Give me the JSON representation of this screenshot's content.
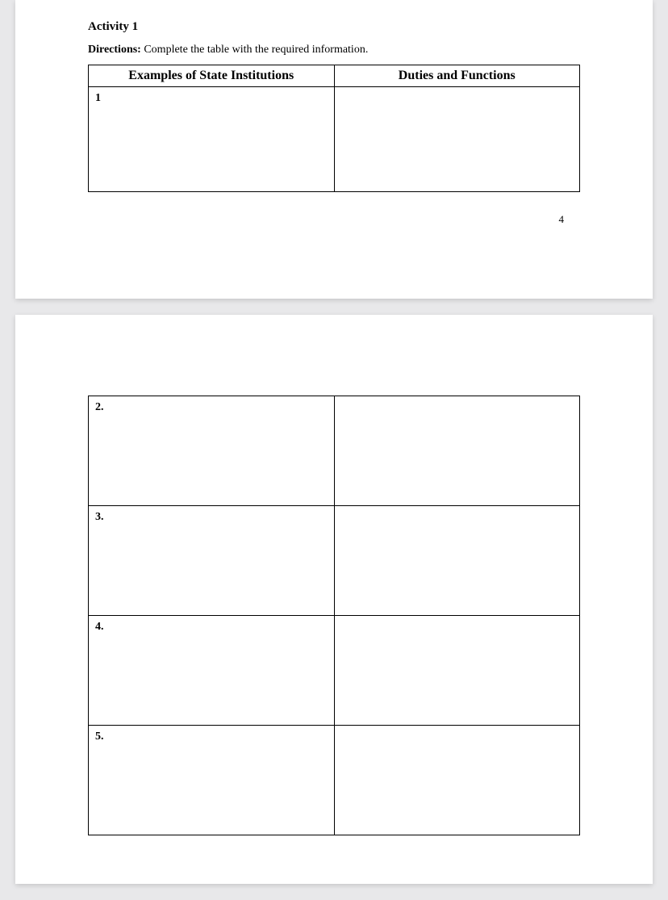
{
  "activity": {
    "title": "Activity 1",
    "directions_label": "Directions:",
    "directions_text": " Complete the table with the required information."
  },
  "table": {
    "header_left": "Examples of State Institutions",
    "header_right": "Duties and Functions",
    "rows_page1": [
      {
        "num": "1",
        "left": "",
        "right": ""
      }
    ],
    "rows_page2": [
      {
        "num": "2.",
        "left": "",
        "right": ""
      },
      {
        "num": "3.",
        "left": "",
        "right": ""
      },
      {
        "num": "4.",
        "left": "",
        "right": ""
      },
      {
        "num": "5.",
        "left": "",
        "right": ""
      }
    ]
  },
  "page_number": "4",
  "style": {
    "background_color": "#e8e8ea",
    "page_color": "#ffffff",
    "border_color": "#000000",
    "font_family": "Times New Roman"
  }
}
